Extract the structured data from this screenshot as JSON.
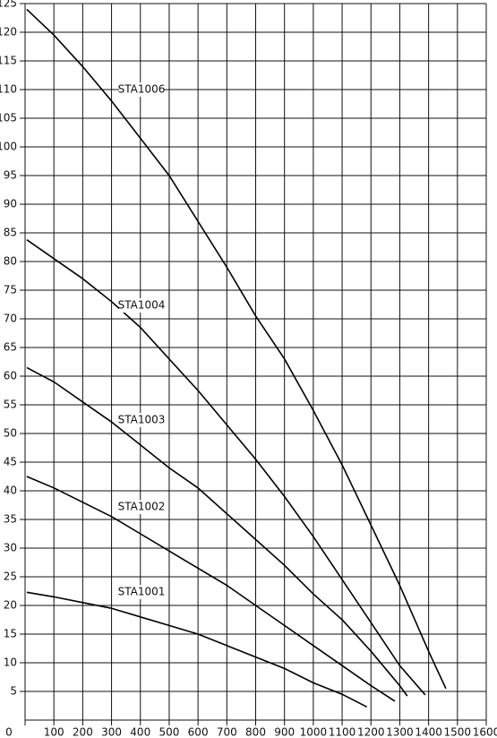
{
  "chart_data": {
    "type": "line",
    "grid": true,
    "xlim": [
      0,
      1600
    ],
    "xticks": [
      0,
      100,
      200,
      300,
      400,
      500,
      600,
      700,
      800,
      900,
      1000,
      1100,
      1200,
      1300,
      1400,
      1500,
      1600
    ],
    "ylim": [
      0,
      125
    ],
    "yticks": [
      5,
      10,
      15,
      20,
      25,
      30,
      35,
      40,
      45,
      50,
      55,
      60,
      65,
      70,
      75,
      80,
      85,
      90,
      95,
      100,
      105,
      110,
      115,
      120,
      125
    ],
    "series": [
      {
        "name": "STA1006",
        "color": "#000000",
        "x": [
          6,
          100,
          200,
          300,
          400,
          500,
          600,
          700,
          800,
          900,
          1000,
          1100,
          1200,
          1300,
          1400,
          1460
        ],
        "values": [
          124,
          119.5,
          114,
          108,
          101.5,
          95,
          87,
          79,
          70.5,
          63,
          54,
          44.5,
          34,
          23.5,
          12,
          5.5
        ]
      },
      {
        "name": "STA1004",
        "color": "#000000",
        "x": [
          6,
          100,
          200,
          300,
          400,
          500,
          600,
          700,
          800,
          900,
          1000,
          1100,
          1200,
          1300,
          1388
        ],
        "values": [
          83.8,
          80.5,
          77,
          73,
          68.5,
          63,
          57.5,
          51.5,
          45.5,
          39,
          32,
          24.5,
          17,
          9.5,
          4.4
        ]
      },
      {
        "name": "STA1003",
        "color": "#000000",
        "x": [
          6,
          100,
          200,
          300,
          400,
          500,
          600,
          700,
          800,
          900,
          1000,
          1100,
          1200,
          1300,
          1326
        ],
        "values": [
          61.5,
          59,
          55.5,
          52,
          48,
          44,
          40.5,
          36,
          31.5,
          27,
          22,
          17.5,
          12,
          6,
          4.2
        ]
      },
      {
        "name": "STA1002",
        "color": "#000000",
        "x": [
          6,
          100,
          200,
          300,
          400,
          500,
          600,
          700,
          800,
          900,
          1000,
          1100,
          1200,
          1283
        ],
        "values": [
          42.5,
          40.5,
          38,
          35.5,
          32.5,
          29.5,
          26.5,
          23.5,
          20,
          16.5,
          13,
          9.5,
          6,
          3.3
        ]
      },
      {
        "name": "STA1001",
        "color": "#000000",
        "x": [
          6,
          100,
          200,
          300,
          400,
          500,
          600,
          700,
          800,
          900,
          1000,
          1100,
          1186
        ],
        "values": [
          22.3,
          21.5,
          20.5,
          19.5,
          18,
          16.5,
          15,
          13,
          11,
          9,
          6.5,
          4.5,
          2.3
        ]
      }
    ]
  }
}
